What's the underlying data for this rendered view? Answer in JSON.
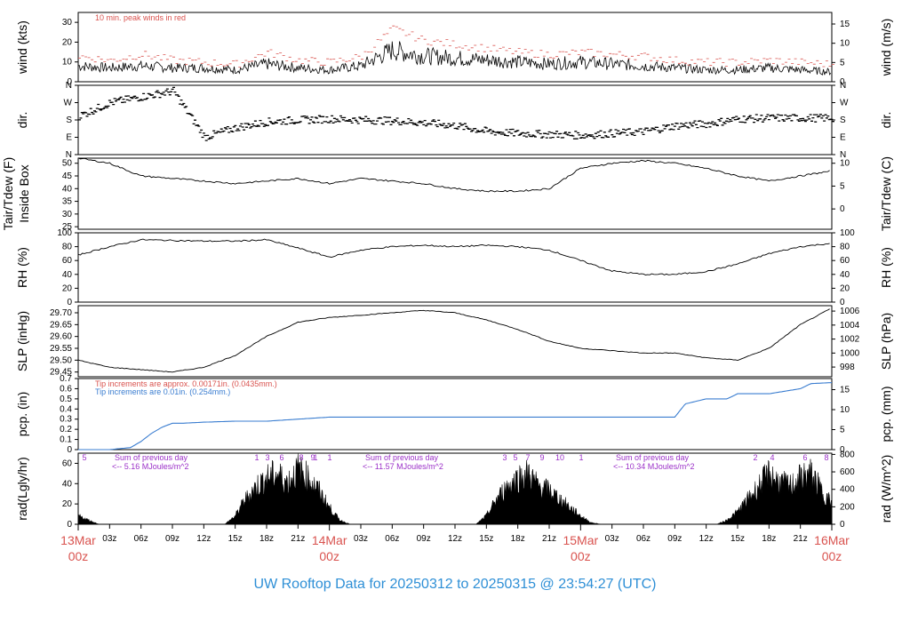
{
  "footer": {
    "title": "UW Rooftop Data for 20250312  to  20250315 @ 23:54:27  (UTC)"
  },
  "colors": {
    "red_note": "#d9534f",
    "blue_note": "#3a7dd0",
    "purple_note": "#9b30c8",
    "title": "#2e8fd6",
    "line": "#000000",
    "pcp_line": "#3a7dd0"
  },
  "x_axis": {
    "hour_ticks": [
      "03z",
      "06z",
      "09z",
      "12z",
      "15z",
      "18z",
      "21z",
      "03z",
      "06z",
      "09z",
      "12z",
      "15z",
      "18z",
      "21z",
      "03z",
      "06z",
      "09z",
      "12z",
      "15z",
      "18z",
      "21z"
    ],
    "day_labels": [
      {
        "top": "13Mar",
        "bottom": "00z"
      },
      {
        "top": "14Mar",
        "bottom": "00z"
      },
      {
        "top": "15Mar",
        "bottom": "00z"
      },
      {
        "top": "16Mar",
        "bottom": "00z"
      }
    ]
  },
  "panels": {
    "wind": {
      "left_label": "wind (kts)",
      "right_label": "wind (m/s)",
      "left_ticks": [
        "0",
        "10",
        "20",
        "30"
      ],
      "right_ticks": [
        "0",
        "5",
        "10",
        "15"
      ],
      "note": "10 min. peak winds in red"
    },
    "dir": {
      "left_label": "dir.",
      "right_label": "dir.",
      "left_ticks": [
        "N",
        "E",
        "S",
        "W",
        "N"
      ],
      "right_ticks": [
        "N",
        "E",
        "S",
        "W",
        "N"
      ]
    },
    "temp": {
      "left_label_1": "Tair/Tdew (F)",
      "left_label_2": "Inside Box",
      "right_label": "Tair/Tdew (C)",
      "left_ticks": [
        "25",
        "30",
        "35",
        "40",
        "45",
        "50"
      ],
      "right_ticks": [
        "0",
        "5",
        "10"
      ]
    },
    "rh": {
      "left_label": "RH (%)",
      "right_label": "RH (%)",
      "left_ticks": [
        "0",
        "20",
        "40",
        "60",
        "80",
        "100"
      ],
      "right_ticks": [
        "0",
        "20",
        "40",
        "60",
        "80",
        "100"
      ]
    },
    "slp": {
      "left_label": "SLP (inHg)",
      "right_label": "SLP (hPa)",
      "left_ticks": [
        "29.45",
        "29.50",
        "29.55",
        "29.60",
        "29.65",
        "29.70"
      ],
      "right_ticks": [
        "998",
        "1000",
        "1002",
        "1004",
        "1006"
      ]
    },
    "pcp": {
      "left_label": "pcp. (in)",
      "right_label": "pcp. (mm)",
      "left_ticks": [
        "0",
        "0.1",
        "0.2",
        "0.3",
        "0.4",
        "0.5",
        "0.6",
        "0.7"
      ],
      "right_ticks": [
        "0",
        "5",
        "10",
        "15"
      ],
      "note_red": "Tip increments are approx. 0.00171in. (0.0435mm.)",
      "note_blue": "Tip increments are 0.01in. (0.254mm.)"
    },
    "rad": {
      "left_label": "rad(Lgly/hr)",
      "right_label": "rad (W/m^2)",
      "left_ticks": [
        "0",
        "20",
        "40",
        "60"
      ],
      "right_ticks": [
        "0",
        "200",
        "400",
        "600",
        "800"
      ],
      "day_sums": [
        {
          "line1": "Sum of previous day",
          "line2": "<-- 5.16 MJoules/m^2"
        },
        {
          "line1": "Sum of previous day",
          "line2": "<-- 11.57 MJoules/m^2"
        },
        {
          "line1": "Sum of previous day",
          "line2": "<-- 10.34 MJoules/m^2"
        }
      ],
      "hour_marks": [
        "5",
        "1",
        "3",
        "6",
        "8",
        "9",
        "1",
        "1",
        "3",
        "5",
        "7",
        "9",
        "10",
        "1",
        "2",
        "4",
        "6",
        "8"
      ]
    }
  },
  "chart_data": [
    {
      "type": "line",
      "title": "",
      "ylabel": "wind (kts)",
      "y2label": "wind (m/s)",
      "ylim": [
        0,
        35
      ],
      "x_hours": [
        0,
        3,
        6,
        9,
        12,
        15,
        18,
        21,
        24,
        27,
        30,
        33,
        36,
        39,
        42,
        45,
        48,
        51,
        54,
        57,
        60,
        63,
        66,
        69,
        72
      ],
      "series": [
        {
          "values": [
            8,
            7,
            8,
            7,
            7,
            6,
            9,
            7,
            6,
            8,
            16,
            13,
            12,
            11,
            10,
            9,
            10,
            9,
            8,
            7,
            6,
            6,
            7,
            6,
            5
          ]
        },
        {
          "name": "10 min. peak winds in red",
          "values": [
            12,
            10,
            13,
            10,
            9,
            8,
            14,
            10,
            9,
            12,
            26,
            20,
            18,
            16,
            14,
            13,
            14,
            13,
            12,
            10,
            9,
            9,
            10,
            9,
            8
          ]
        }
      ]
    },
    {
      "type": "scatter",
      "ylabel": "dir.",
      "yticks": [
        "N",
        "E",
        "S",
        "W",
        "N"
      ],
      "x_hours": [
        0,
        3,
        6,
        9,
        12,
        15,
        18,
        21,
        24,
        27,
        30,
        33,
        36,
        39,
        42,
        45,
        48,
        51,
        54,
        57,
        60,
        63,
        66,
        69,
        72
      ],
      "values_deg": [
        200,
        270,
        300,
        330,
        90,
        140,
        170,
        180,
        185,
        180,
        175,
        165,
        150,
        120,
        110,
        105,
        100,
        110,
        120,
        150,
        160,
        185,
        190,
        190,
        190
      ]
    },
    {
      "type": "line",
      "ylabel": "Tair/Tdew (F) Inside Box",
      "y2label": "Tair/Tdew (C)",
      "ylim": [
        24,
        52
      ],
      "x_hours": [
        0,
        3,
        6,
        9,
        12,
        15,
        18,
        21,
        24,
        27,
        30,
        33,
        36,
        39,
        42,
        45,
        48,
        51,
        54,
        57,
        60,
        63,
        66,
        69,
        72
      ],
      "values": [
        52,
        50,
        45,
        44,
        43,
        42,
        43,
        44,
        42,
        44,
        43,
        42,
        40,
        39,
        39,
        40,
        48,
        50,
        51,
        50,
        48,
        45,
        43,
        45,
        47
      ]
    },
    {
      "type": "line",
      "ylabel": "RH (%)",
      "ylim": [
        0,
        100
      ],
      "x_hours": [
        0,
        3,
        6,
        9,
        12,
        15,
        18,
        21,
        24,
        27,
        30,
        33,
        36,
        39,
        42,
        45,
        48,
        51,
        54,
        57,
        60,
        63,
        66,
        69,
        72
      ],
      "values": [
        68,
        80,
        90,
        89,
        88,
        88,
        90,
        78,
        65,
        75,
        80,
        82,
        80,
        82,
        80,
        75,
        60,
        45,
        40,
        40,
        44,
        55,
        70,
        80,
        85
      ]
    },
    {
      "type": "line",
      "ylabel": "SLP (inHg)",
      "y2label": "SLP (hPa)",
      "ylim": [
        29.43,
        29.73
      ],
      "x_hours": [
        0,
        3,
        6,
        9,
        12,
        15,
        18,
        21,
        24,
        27,
        30,
        33,
        36,
        39,
        42,
        45,
        48,
        51,
        54,
        57,
        60,
        63,
        66,
        69,
        72
      ],
      "values": [
        29.5,
        29.47,
        29.46,
        29.45,
        29.47,
        29.52,
        29.6,
        29.66,
        29.68,
        29.69,
        29.7,
        29.71,
        29.7,
        29.67,
        29.63,
        29.58,
        29.55,
        29.54,
        29.53,
        29.53,
        29.51,
        29.5,
        29.55,
        29.65,
        29.72
      ]
    },
    {
      "type": "line",
      "ylabel": "pcp. (in)",
      "y2label": "pcp. (mm)",
      "ylim": [
        0,
        0.7
      ],
      "x_hours": [
        0,
        3,
        5,
        6,
        7,
        8,
        9,
        10,
        12,
        15,
        18,
        21,
        24,
        30,
        36,
        42,
        48,
        54,
        57,
        58,
        60,
        62,
        63,
        66,
        69,
        70,
        72
      ],
      "values": [
        0,
        0,
        0.02,
        0.08,
        0.16,
        0.22,
        0.26,
        0.26,
        0.27,
        0.28,
        0.28,
        0.3,
        0.32,
        0.32,
        0.32,
        0.32,
        0.32,
        0.32,
        0.32,
        0.45,
        0.5,
        0.5,
        0.55,
        0.55,
        0.6,
        0.65,
        0.66
      ]
    },
    {
      "type": "area",
      "ylabel": "rad(Lgly/hr)",
      "y2label": "rad (W/m^2)",
      "ylim": [
        0,
        70
      ],
      "x_hours": [
        0,
        1,
        2,
        14,
        15,
        16,
        17,
        18,
        19,
        20,
        21,
        22,
        23,
        24,
        25,
        26,
        38,
        39,
        40,
        41,
        42,
        43,
        44,
        45,
        46,
        47,
        48,
        49,
        50,
        61,
        62,
        63,
        64,
        65,
        66,
        67,
        68,
        69,
        70,
        71,
        72
      ],
      "values": [
        10,
        5,
        0,
        0,
        10,
        30,
        45,
        55,
        60,
        50,
        65,
        55,
        40,
        20,
        5,
        0,
        0,
        10,
        30,
        45,
        55,
        60,
        45,
        40,
        30,
        20,
        10,
        2,
        0,
        0,
        5,
        15,
        30,
        45,
        60,
        50,
        45,
        55,
        60,
        40,
        25
      ]
    }
  ]
}
